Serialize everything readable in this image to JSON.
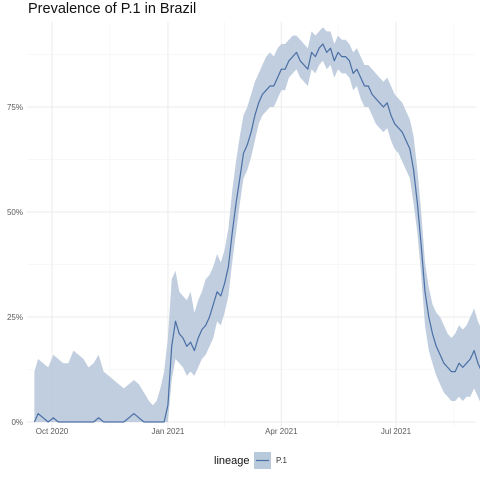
{
  "chart_data": {
    "type": "line",
    "title": "Prevalence of P.1 in Brazil",
    "xlabel": "",
    "ylabel": "",
    "x_ticks": [
      "Oct 2020",
      "Jan 2021",
      "Apr 2021",
      "Jul 2021"
    ],
    "y_ticks": [
      "0%",
      "25%",
      "50%",
      "75%"
    ],
    "ylim": [
      0,
      0.95
    ],
    "grid": true,
    "legend": {
      "title": "lineage",
      "position": "bottom"
    },
    "colors": {
      "line": "#4a6fa5",
      "ribbon": "#b9c9dc",
      "grid_major": "#ebebeb",
      "grid_minor": "#f6f6f6"
    },
    "series": [
      {
        "name": "P.1",
        "x": [
          "2020-09-17",
          "2020-09-20",
          "2020-09-24",
          "2020-09-28",
          "2020-10-02",
          "2020-10-06",
          "2020-10-10",
          "2020-10-14",
          "2020-10-18",
          "2020-10-22",
          "2020-10-26",
          "2020-10-30",
          "2020-11-03",
          "2020-11-07",
          "2020-11-11",
          "2020-11-15",
          "2020-11-19",
          "2020-11-23",
          "2020-11-27",
          "2020-12-01",
          "2020-12-05",
          "2020-12-09",
          "2020-12-13",
          "2020-12-17",
          "2020-12-20",
          "2020-12-23",
          "2020-12-26",
          "2020-12-29",
          "2021-01-01",
          "2021-01-04",
          "2021-01-07",
          "2021-01-10",
          "2021-01-13",
          "2021-01-16",
          "2021-01-19",
          "2021-01-22",
          "2021-01-25",
          "2021-01-28",
          "2021-01-31",
          "2021-02-03",
          "2021-02-06",
          "2021-02-09",
          "2021-02-12",
          "2021-02-15",
          "2021-02-18",
          "2021-02-21",
          "2021-02-24",
          "2021-02-27",
          "2021-03-02",
          "2021-03-05",
          "2021-03-08",
          "2021-03-11",
          "2021-03-14",
          "2021-03-17",
          "2021-03-20",
          "2021-03-23",
          "2021-03-26",
          "2021-03-29",
          "2021-04-01",
          "2021-04-04",
          "2021-04-07",
          "2021-04-10",
          "2021-04-13",
          "2021-04-16",
          "2021-04-19",
          "2021-04-22",
          "2021-04-25",
          "2021-04-28",
          "2021-05-01",
          "2021-05-04",
          "2021-05-07",
          "2021-05-10",
          "2021-05-13",
          "2021-05-16",
          "2021-05-19",
          "2021-05-22",
          "2021-05-25",
          "2021-05-28",
          "2021-05-31",
          "2021-06-03",
          "2021-06-06",
          "2021-06-09",
          "2021-06-12",
          "2021-06-15",
          "2021-06-18",
          "2021-06-21",
          "2021-06-24",
          "2021-06-27",
          "2021-06-30",
          "2021-07-03",
          "2021-07-06",
          "2021-07-09",
          "2021-07-12",
          "2021-07-15",
          "2021-07-18",
          "2021-07-21",
          "2021-07-24",
          "2021-07-27",
          "2021-07-30",
          "2021-08-02",
          "2021-08-05",
          "2021-08-08",
          "2021-08-11",
          "2021-08-14",
          "2021-08-17",
          "2021-08-20",
          "2021-08-23",
          "2021-08-26",
          "2021-08-29",
          "2021-09-01",
          "2021-09-04",
          "2021-09-07"
        ],
        "values": [
          0.0,
          0.02,
          0.01,
          0.0,
          0.01,
          0.0,
          0.0,
          0.0,
          0.0,
          0.0,
          0.0,
          0.0,
          0.0,
          0.01,
          0.0,
          0.0,
          0.0,
          0.0,
          0.0,
          0.01,
          0.02,
          0.01,
          0.0,
          0.0,
          0.0,
          0.0,
          0.0,
          0.0,
          0.04,
          0.18,
          0.24,
          0.21,
          0.2,
          0.18,
          0.19,
          0.17,
          0.2,
          0.22,
          0.23,
          0.25,
          0.28,
          0.31,
          0.3,
          0.33,
          0.37,
          0.45,
          0.52,
          0.58,
          0.64,
          0.66,
          0.69,
          0.73,
          0.76,
          0.78,
          0.79,
          0.8,
          0.8,
          0.82,
          0.84,
          0.84,
          0.86,
          0.87,
          0.88,
          0.86,
          0.85,
          0.84,
          0.88,
          0.87,
          0.89,
          0.9,
          0.88,
          0.89,
          0.86,
          0.88,
          0.87,
          0.87,
          0.86,
          0.83,
          0.84,
          0.82,
          0.8,
          0.8,
          0.78,
          0.77,
          0.76,
          0.75,
          0.76,
          0.73,
          0.71,
          0.7,
          0.69,
          0.67,
          0.65,
          0.6,
          0.52,
          0.42,
          0.31,
          0.25,
          0.21,
          0.18,
          0.16,
          0.14,
          0.13,
          0.12,
          0.12,
          0.14,
          0.13,
          0.14,
          0.15,
          0.17,
          0.14,
          0.12
        ],
        "lower": [
          0.0,
          0.0,
          0.0,
          0.0,
          0.0,
          0.0,
          0.0,
          0.0,
          0.0,
          0.0,
          0.0,
          0.0,
          0.0,
          0.0,
          0.0,
          0.0,
          0.0,
          0.0,
          0.0,
          0.0,
          0.0,
          0.0,
          0.0,
          0.0,
          0.0,
          0.0,
          0.0,
          0.0,
          0.0,
          0.1,
          0.15,
          0.14,
          0.13,
          0.11,
          0.12,
          0.11,
          0.13,
          0.15,
          0.16,
          0.18,
          0.2,
          0.24,
          0.23,
          0.26,
          0.3,
          0.38,
          0.45,
          0.52,
          0.58,
          0.6,
          0.63,
          0.67,
          0.71,
          0.73,
          0.74,
          0.75,
          0.75,
          0.77,
          0.79,
          0.79,
          0.82,
          0.83,
          0.84,
          0.82,
          0.81,
          0.8,
          0.84,
          0.83,
          0.85,
          0.86,
          0.84,
          0.85,
          0.82,
          0.84,
          0.83,
          0.83,
          0.82,
          0.79,
          0.8,
          0.77,
          0.75,
          0.75,
          0.73,
          0.71,
          0.7,
          0.69,
          0.7,
          0.67,
          0.65,
          0.64,
          0.62,
          0.6,
          0.58,
          0.52,
          0.45,
          0.35,
          0.23,
          0.17,
          0.14,
          0.11,
          0.09,
          0.07,
          0.06,
          0.05,
          0.05,
          0.06,
          0.05,
          0.06,
          0.06,
          0.08,
          0.06,
          0.04
        ],
        "upper": [
          0.12,
          0.15,
          0.14,
          0.13,
          0.16,
          0.15,
          0.14,
          0.14,
          0.17,
          0.16,
          0.15,
          0.13,
          0.14,
          0.16,
          0.12,
          0.11,
          0.1,
          0.09,
          0.08,
          0.09,
          0.1,
          0.09,
          0.07,
          0.05,
          0.04,
          0.05,
          0.08,
          0.12,
          0.2,
          0.34,
          0.36,
          0.31,
          0.3,
          0.29,
          0.31,
          0.26,
          0.29,
          0.31,
          0.34,
          0.35,
          0.37,
          0.4,
          0.38,
          0.41,
          0.46,
          0.55,
          0.62,
          0.68,
          0.73,
          0.75,
          0.78,
          0.81,
          0.83,
          0.85,
          0.87,
          0.88,
          0.87,
          0.89,
          0.9,
          0.9,
          0.91,
          0.92,
          0.92,
          0.91,
          0.9,
          0.89,
          0.93,
          0.92,
          0.93,
          0.94,
          0.93,
          0.93,
          0.9,
          0.92,
          0.91,
          0.91,
          0.9,
          0.88,
          0.89,
          0.87,
          0.85,
          0.85,
          0.84,
          0.83,
          0.82,
          0.81,
          0.82,
          0.8,
          0.78,
          0.77,
          0.76,
          0.74,
          0.72,
          0.68,
          0.6,
          0.5,
          0.38,
          0.32,
          0.28,
          0.26,
          0.25,
          0.23,
          0.21,
          0.2,
          0.21,
          0.23,
          0.22,
          0.23,
          0.25,
          0.27,
          0.24,
          0.22
        ]
      }
    ]
  }
}
